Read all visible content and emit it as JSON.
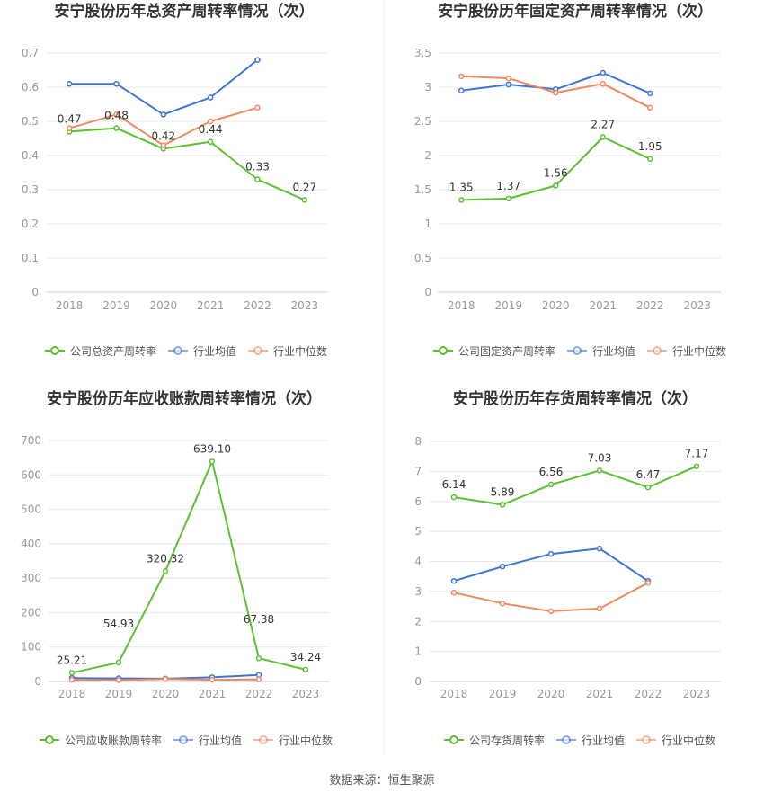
{
  "footer": {
    "source": "数据来源：恒生聚源"
  },
  "chart_data": [
    {
      "type": "line",
      "title": "安宁股份历年总资产周转率情况（次）",
      "categories": [
        "2018",
        "2019",
        "2020",
        "2021",
        "2022",
        "2023"
      ],
      "ylim": [
        0,
        0.7
      ],
      "yticks": [
        0,
        0.1,
        0.2,
        0.3,
        0.4,
        0.5,
        0.6,
        0.7
      ],
      "grid": true,
      "legend_position": "bottom",
      "series": [
        {
          "name": "公司总资产周转率",
          "color": "#5bc130",
          "values": [
            0.47,
            0.48,
            0.42,
            0.44,
            0.33,
            0.27
          ],
          "data_labels": [
            "0.47",
            "0.48",
            "0.42",
            "0.44",
            "0.33",
            "0.27"
          ]
        },
        {
          "name": "行业均值",
          "color": "#3d74d9",
          "values": [
            0.61,
            0.61,
            0.52,
            0.57,
            0.68,
            null
          ]
        },
        {
          "name": "行业中位数",
          "color": "#f1895f",
          "values": [
            0.48,
            0.52,
            0.43,
            0.5,
            0.54,
            null
          ]
        }
      ]
    },
    {
      "type": "line",
      "title": "安宁股份历年固定资产周转率情况（次）",
      "categories": [
        "2018",
        "2019",
        "2020",
        "2021",
        "2022",
        "2023"
      ],
      "ylim": [
        0,
        3.5
      ],
      "yticks": [
        0,
        0.5,
        1,
        1.5,
        2,
        2.5,
        3,
        3.5
      ],
      "grid": true,
      "legend_position": "bottom",
      "series": [
        {
          "name": "公司固定资产周转率",
          "color": "#5bc130",
          "values": [
            1.35,
            1.37,
            1.56,
            2.27,
            1.95,
            null
          ],
          "data_labels": [
            "1.35",
            "1.37",
            "1.56",
            "2.27",
            "1.95",
            null
          ]
        },
        {
          "name": "行业均值",
          "color": "#3d74d9",
          "values": [
            2.95,
            3.04,
            2.97,
            3.21,
            2.91,
            null
          ]
        },
        {
          "name": "行业中位数",
          "color": "#f1895f",
          "values": [
            3.16,
            3.13,
            2.92,
            3.05,
            2.7,
            null
          ]
        }
      ]
    },
    {
      "type": "line",
      "title": "安宁股份历年应收账款周转率情况（次）",
      "categories": [
        "2018",
        "2019",
        "2020",
        "2021",
        "2022",
        "2023"
      ],
      "ylim": [
        0,
        700
      ],
      "yticks": [
        0,
        100,
        200,
        300,
        400,
        500,
        600,
        700
      ],
      "grid": true,
      "legend_position": "bottom",
      "series": [
        {
          "name": "公司应收账款周转率",
          "color": "#5bc130",
          "values": [
            25.21,
            54.93,
            320.32,
            639.1,
            67.38,
            34.24
          ],
          "data_labels": [
            "25.21",
            "54.93",
            "320.32",
            "639.10",
            "67.38",
            "34.24"
          ]
        },
        {
          "name": "行业均值",
          "color": "#3d74d9",
          "values": [
            10,
            9,
            8,
            12,
            19,
            null
          ]
        },
        {
          "name": "行业中位数",
          "color": "#f1895f",
          "values": [
            5,
            4,
            7,
            5,
            6,
            null
          ]
        }
      ]
    },
    {
      "type": "line",
      "title": "安宁股份历年存货周转率情况（次）",
      "categories": [
        "2018",
        "2019",
        "2020",
        "2021",
        "2022",
        "2023"
      ],
      "ylim": [
        0,
        8
      ],
      "yticks": [
        0,
        1,
        2,
        3,
        4,
        5,
        6,
        7,
        8
      ],
      "grid": true,
      "legend_position": "bottom",
      "series": [
        {
          "name": "公司存货周转率",
          "color": "#5bc130",
          "values": [
            6.14,
            5.89,
            6.56,
            7.03,
            6.47,
            7.17
          ],
          "data_labels": [
            "6.14",
            "5.89",
            "6.56",
            "7.03",
            "6.47",
            "7.17"
          ]
        },
        {
          "name": "行业均值",
          "color": "#3d74d9",
          "values": [
            3.35,
            3.83,
            4.25,
            4.43,
            3.35,
            null
          ]
        },
        {
          "name": "行业中位数",
          "color": "#f1895f",
          "values": [
            2.96,
            2.6,
            2.34,
            2.43,
            3.29,
            null
          ]
        }
      ]
    }
  ]
}
